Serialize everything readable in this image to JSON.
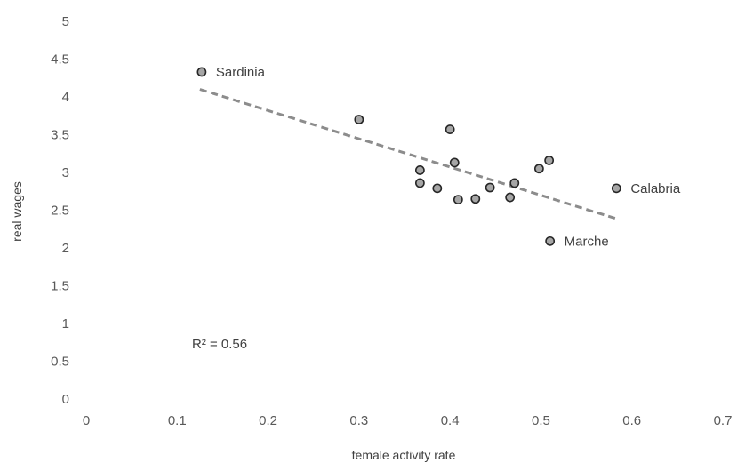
{
  "chart_data": {
    "type": "scatter",
    "title": "",
    "xlabel": "female activity rate",
    "ylabel": "real wages",
    "xlim": [
      0,
      0.7
    ],
    "ylim": [
      0,
      5
    ],
    "xticks": [
      "0",
      "0.1",
      "0.2",
      "0.3",
      "0.4",
      "0.5",
      "0.6",
      "0.7"
    ],
    "yticks": [
      "0",
      "0.5",
      "1",
      "1.5",
      "2",
      "2.5",
      "3",
      "3.5",
      "4",
      "4.5",
      "5"
    ],
    "grid": false,
    "legend": "none",
    "points": [
      {
        "x": 0.127,
        "y": 4.33,
        "label": "Sardinia"
      },
      {
        "x": 0.3,
        "y": 3.7,
        "label": ""
      },
      {
        "x": 0.367,
        "y": 3.03,
        "label": ""
      },
      {
        "x": 0.367,
        "y": 2.86,
        "label": ""
      },
      {
        "x": 0.386,
        "y": 2.79,
        "label": ""
      },
      {
        "x": 0.4,
        "y": 3.57,
        "label": ""
      },
      {
        "x": 0.405,
        "y": 3.13,
        "label": ""
      },
      {
        "x": 0.409,
        "y": 2.64,
        "label": ""
      },
      {
        "x": 0.428,
        "y": 2.65,
        "label": ""
      },
      {
        "x": 0.444,
        "y": 2.8,
        "label": ""
      },
      {
        "x": 0.466,
        "y": 2.67,
        "label": ""
      },
      {
        "x": 0.471,
        "y": 2.86,
        "label": ""
      },
      {
        "x": 0.498,
        "y": 3.05,
        "label": ""
      },
      {
        "x": 0.509,
        "y": 3.16,
        "label": ""
      },
      {
        "x": 0.51,
        "y": 2.09,
        "label": "Marche"
      },
      {
        "x": 0.583,
        "y": 2.79,
        "label": "Calabria"
      }
    ],
    "trendline": {
      "x1": 0.125,
      "y1": 4.1,
      "x2": 0.585,
      "y2": 2.38,
      "style": "dashed"
    },
    "annotation": "R² = 0.56",
    "colors": {
      "marker_fill": "#a6a6a6",
      "marker_edge": "#262626",
      "trendline": "#8c8c8c",
      "text": "#595959"
    }
  }
}
